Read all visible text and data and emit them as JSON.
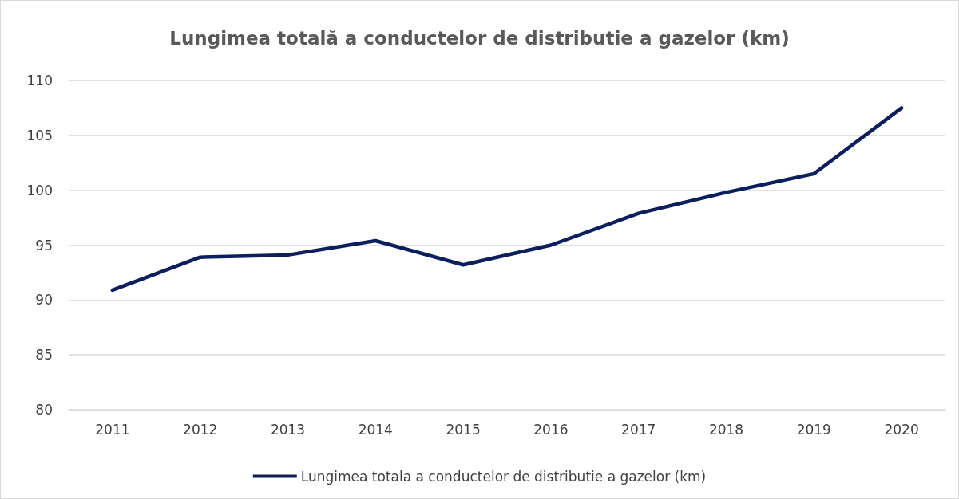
{
  "chart_data": {
    "type": "line",
    "title": "Lungimea totală a conductelor de distributie a gazelor (km)",
    "categories": [
      "2011",
      "2012",
      "2013",
      "2014",
      "2015",
      "2016",
      "2017",
      "2018",
      "2019",
      "2020"
    ],
    "series": [
      {
        "name": "Lungimea totala a conductelor de distributie a gazelor (km)",
        "color": "#0c1f5c",
        "values": [
          90.9,
          93.9,
          94.1,
          95.4,
          93.2,
          95.0,
          97.9,
          99.8,
          101.5,
          107.5
        ]
      }
    ],
    "ylim": [
      80,
      110
    ],
    "yticks": [
      80,
      85,
      90,
      95,
      100,
      105,
      110
    ],
    "grid": "y",
    "legend": "bottom",
    "marker": "none",
    "line_style": "solid"
  }
}
